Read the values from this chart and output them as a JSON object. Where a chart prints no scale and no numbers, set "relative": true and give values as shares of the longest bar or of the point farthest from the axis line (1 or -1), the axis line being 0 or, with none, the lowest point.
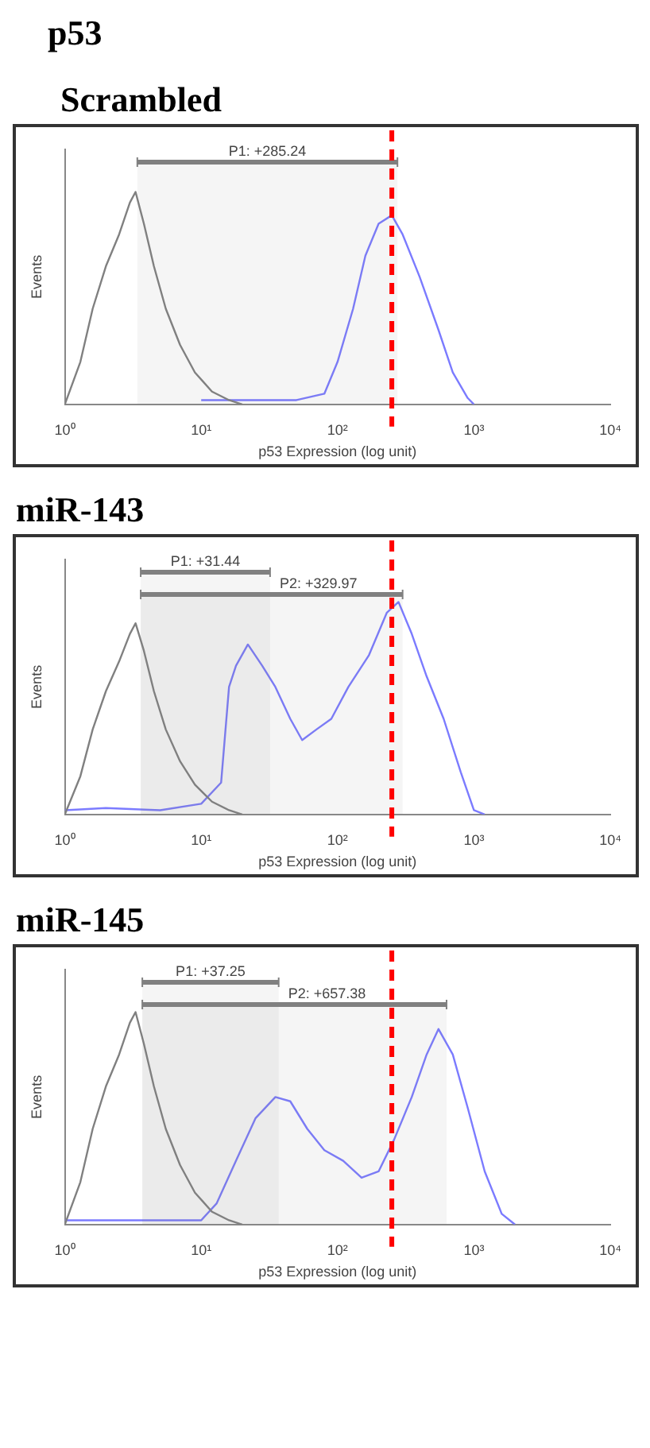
{
  "chart_data": [
    {
      "type": "line",
      "title": "p53",
      "subtitle": "Scrambled",
      "xlabel": "p53 Expression (log unit)",
      "ylabel": "Events",
      "relative": true,
      "log": "x",
      "xlim": [
        1,
        10000
      ],
      "xticks": [
        {
          "value": 1,
          "label": "10⁰"
        },
        {
          "value": 10,
          "label": "10¹"
        },
        {
          "value": 100,
          "label": "10²"
        },
        {
          "value": 1000,
          "label": "10³"
        },
        {
          "value": 10000,
          "label": "10⁴"
        }
      ],
      "series": [
        {
          "color": "#808080",
          "x": [
            1,
            1.3,
            1.6,
            2,
            2.5,
            3,
            3.3,
            3.8,
            4.5,
            5.5,
            7,
            9,
            12,
            16,
            20
          ],
          "values": [
            0,
            0.2,
            0.45,
            0.65,
            0.8,
            0.95,
            1,
            0.85,
            0.65,
            0.45,
            0.28,
            0.15,
            0.06,
            0.02,
            0
          ]
        },
        {
          "color": "#7b7bff",
          "x": [
            10,
            20,
            50,
            80,
            100,
            130,
            160,
            200,
            250,
            300,
            400,
            550,
            700,
            900,
            1000
          ],
          "values": [
            0.02,
            0.02,
            0.02,
            0.05,
            0.2,
            0.45,
            0.7,
            0.85,
            0.89,
            0.8,
            0.6,
            0.35,
            0.15,
            0.03,
            0
          ]
        }
      ],
      "ref_lines": [
        {
          "axis": "x",
          "value": 250,
          "color": "#ff0000",
          "line_style": "dashed"
        }
      ],
      "bands": [
        {
          "axis": "x",
          "from": 3.4,
          "to": 275,
          "label": "P1: +285.24",
          "color": "#808080"
        }
      ]
    },
    {
      "type": "line",
      "title": "miR-143",
      "xlabel": "p53 Expression (log unit)",
      "ylabel": "Events",
      "relative": true,
      "log": "x",
      "xlim": [
        1,
        10000
      ],
      "xticks": [
        {
          "value": 1,
          "label": "10⁰"
        },
        {
          "value": 10,
          "label": "10¹"
        },
        {
          "value": 100,
          "label": "10²"
        },
        {
          "value": 1000,
          "label": "10³"
        },
        {
          "value": 10000,
          "label": "10⁴"
        }
      ],
      "series": [
        {
          "color": "#808080",
          "x": [
            1,
            1.3,
            1.6,
            2,
            2.5,
            3,
            3.3,
            3.8,
            4.5,
            5.5,
            7,
            9,
            12,
            16,
            20
          ],
          "values": [
            0,
            0.18,
            0.4,
            0.58,
            0.72,
            0.85,
            0.9,
            0.77,
            0.58,
            0.4,
            0.25,
            0.14,
            0.06,
            0.02,
            0
          ]
        },
        {
          "color": "#7b7bff",
          "x": [
            1,
            2,
            5,
            10,
            14,
            16,
            18,
            22,
            28,
            35,
            45,
            55,
            70,
            90,
            120,
            170,
            230,
            280,
            350,
            450,
            600,
            800,
            1000,
            1200
          ],
          "values": [
            0.02,
            0.03,
            0.02,
            0.05,
            0.15,
            0.6,
            0.7,
            0.8,
            0.7,
            0.6,
            0.45,
            0.35,
            0.4,
            0.45,
            0.6,
            0.75,
            0.95,
            1,
            0.85,
            0.65,
            0.45,
            0.2,
            0.02,
            0
          ]
        }
      ],
      "ref_lines": [
        {
          "axis": "x",
          "value": 250,
          "color": "#ff0000",
          "line_style": "dashed"
        }
      ],
      "bands": [
        {
          "axis": "x",
          "from": 3.6,
          "to": 32,
          "label": "P1: +31.44",
          "color": "#808080"
        },
        {
          "axis": "x",
          "from": 3.6,
          "to": 300,
          "label": "P2: +329.97",
          "color": "#808080"
        }
      ]
    },
    {
      "type": "line",
      "title": "miR-145",
      "xlabel": "p53 Expression (log unit)",
      "ylabel": "Events",
      "relative": true,
      "log": "x",
      "xlim": [
        1,
        10000
      ],
      "xticks": [
        {
          "value": 1,
          "label": "10⁰"
        },
        {
          "value": 10,
          "label": "10¹"
        },
        {
          "value": 100,
          "label": "10²"
        },
        {
          "value": 1000,
          "label": "10³"
        },
        {
          "value": 10000,
          "label": "10⁴"
        }
      ],
      "series": [
        {
          "color": "#808080",
          "x": [
            1,
            1.3,
            1.6,
            2,
            2.5,
            3,
            3.3,
            3.8,
            4.5,
            5.5,
            7,
            9,
            12,
            16,
            20
          ],
          "values": [
            0,
            0.2,
            0.45,
            0.65,
            0.8,
            0.95,
            1,
            0.85,
            0.65,
            0.45,
            0.28,
            0.15,
            0.06,
            0.02,
            0
          ]
        },
        {
          "color": "#7b7bff",
          "x": [
            1,
            5,
            10,
            13,
            18,
            25,
            35,
            45,
            60,
            80,
            110,
            150,
            200,
            260,
            350,
            450,
            550,
            700,
            900,
            1200,
            1600,
            2000
          ],
          "values": [
            0.02,
            0.02,
            0.02,
            0.1,
            0.3,
            0.5,
            0.6,
            0.58,
            0.45,
            0.35,
            0.3,
            0.22,
            0.25,
            0.4,
            0.6,
            0.8,
            0.92,
            0.8,
            0.55,
            0.25,
            0.05,
            0
          ]
        }
      ],
      "ref_lines": [
        {
          "axis": "x",
          "value": 250,
          "color": "#ff0000",
          "line_style": "dashed"
        }
      ],
      "bands": [
        {
          "axis": "x",
          "from": 3.7,
          "to": 37,
          "label": "P1: +37.25",
          "color": "#808080"
        },
        {
          "axis": "x",
          "from": 3.7,
          "to": 630,
          "label": "P2: +657.38",
          "color": "#808080"
        }
      ]
    }
  ]
}
